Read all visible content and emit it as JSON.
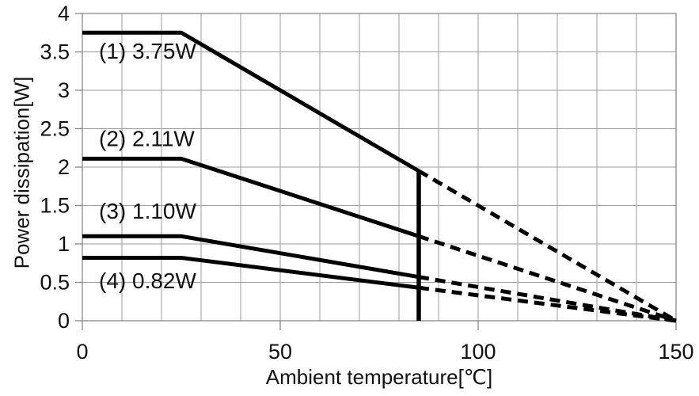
{
  "chart_data": {
    "type": "line",
    "title": "",
    "xlabel": "Ambient temperature[℃]",
    "ylabel": "Power dissipation[W]",
    "xlim": [
      0,
      150
    ],
    "ylim": [
      0,
      4
    ],
    "x_ticks": [
      0,
      50,
      100,
      150
    ],
    "x_tick_labels": [
      "0",
      "50",
      "100",
      "150"
    ],
    "y_ticks": [
      0,
      0.5,
      1,
      1.5,
      2,
      2.5,
      3,
      3.5,
      4
    ],
    "y_tick_labels": [
      "0",
      "0.5",
      "1",
      "1.5",
      "2",
      "2.5",
      "3",
      "3.5",
      "4"
    ],
    "x_grid_step": 10,
    "y_grid_step": 0.5,
    "grid": true,
    "legend_position": "none",
    "line_color": "#000000",
    "grid_color": "#9b9b9b",
    "axis_color": "#888888",
    "derating_break_temp_c": 25,
    "solid_until_temp_c": 85,
    "zero_power_temp_c": 150,
    "series": [
      {
        "name": "(1) 3.75W",
        "rated_power_w": 3.75,
        "solid_points": [
          [
            0,
            3.75
          ],
          [
            25,
            3.75
          ],
          [
            85,
            1.95
          ]
        ],
        "dashed_points": [
          [
            85,
            1.95
          ],
          [
            150,
            0
          ]
        ],
        "label": {
          "text": "(1) 3.75W",
          "x": 4.2,
          "y": 3.51
        }
      },
      {
        "name": "(2) 2.11W",
        "rated_power_w": 2.11,
        "solid_points": [
          [
            0,
            2.11
          ],
          [
            25,
            2.11
          ],
          [
            85,
            1.1
          ]
        ],
        "dashed_points": [
          [
            85,
            1.1
          ],
          [
            150,
            0
          ]
        ],
        "label": {
          "text": "(2) 2.11W",
          "x": 4.2,
          "y": 2.37
        }
      },
      {
        "name": "(3) 1.10W",
        "rated_power_w": 1.1,
        "solid_points": [
          [
            0,
            1.1
          ],
          [
            25,
            1.1
          ],
          [
            85,
            0.57
          ]
        ],
        "dashed_points": [
          [
            85,
            0.57
          ],
          [
            150,
            0
          ]
        ],
        "label": {
          "text": "(3) 1.10W",
          "x": 4.2,
          "y": 1.43
        }
      },
      {
        "name": "(4) 0.82W",
        "rated_power_w": 0.82,
        "solid_points": [
          [
            0,
            0.82
          ],
          [
            25,
            0.82
          ],
          [
            85,
            0.43
          ]
        ],
        "dashed_points": [
          [
            85,
            0.43
          ],
          [
            150,
            0
          ]
        ],
        "label": {
          "text": "(4) 0.82W",
          "x": 4.2,
          "y": 0.52
        }
      }
    ],
    "vertical_line": {
      "x": 85,
      "y_from": 0,
      "y_to": 1.95
    }
  }
}
